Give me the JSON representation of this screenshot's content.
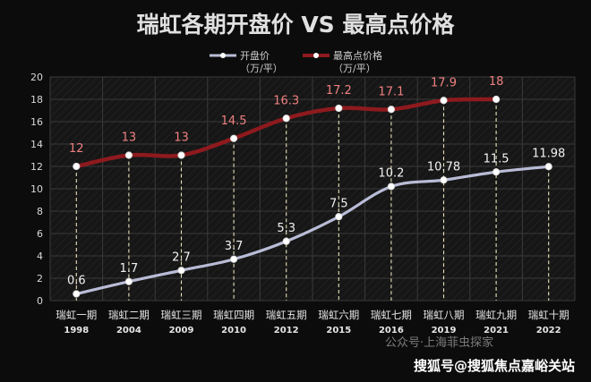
{
  "chart_data": {
    "type": "line",
    "title": "瑞虹各期开盘价 VS 最高点价格",
    "categories": [
      "瑞虹一期",
      "瑞虹二期",
      "瑞虹三期",
      "瑞虹四期",
      "瑞虹五期",
      "瑞虹六期",
      "瑞虹七期",
      "瑞虹八期",
      "瑞虹九期",
      "瑞虹十期"
    ],
    "years": [
      "1998",
      "2004",
      "2009",
      "2010",
      "2012",
      "2015",
      "2016",
      "2019",
      "2021",
      "2022"
    ],
    "series": [
      {
        "name": "开盘价",
        "unit": "（万/平）",
        "color": "#b9bcd6",
        "values": [
          0.6,
          1.7,
          2.7,
          3.7,
          5.3,
          7.5,
          10.2,
          10.78,
          11.5,
          11.98
        ],
        "labels": [
          "0.6",
          "1.7",
          "2.7",
          "3.7",
          "5.3",
          "7.5",
          "10.2",
          "10.78",
          "11.5",
          "11.98"
        ]
      },
      {
        "name": "最高点价格",
        "unit": "（万/平）",
        "color": "#8e1a1e",
        "values": [
          12,
          13,
          13,
          14.5,
          16.3,
          17.2,
          17.1,
          17.9,
          18,
          null
        ],
        "labels": [
          "12",
          "13",
          "13",
          "14.5",
          "16.3",
          "17.2",
          "17.1",
          "17.9",
          "18",
          null
        ]
      }
    ],
    "ylim": [
      0,
      20
    ],
    "yticks": [
      0,
      2,
      4,
      6,
      8,
      10,
      12,
      14,
      16,
      18,
      20
    ],
    "grid": true,
    "legend": "top-left"
  },
  "watermark": {
    "faint": "公众号·上海菲虫探家",
    "main": "搜狐号@搜狐焦点嘉峪关站"
  }
}
